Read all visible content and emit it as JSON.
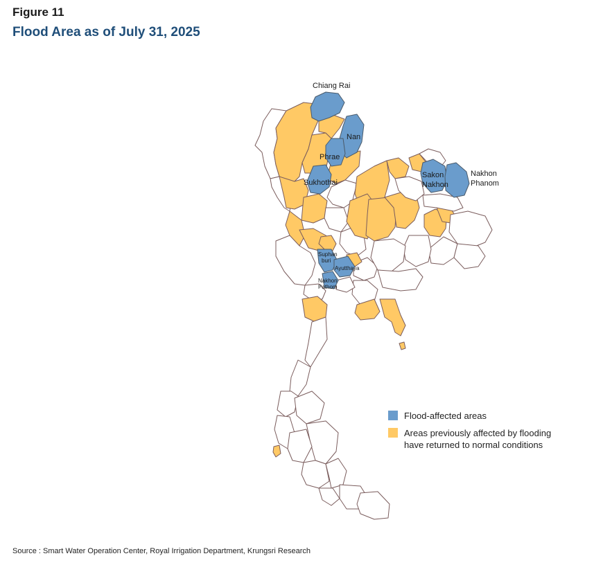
{
  "figure": {
    "label": "Figure 11",
    "title": "Flood Area as of July 31, 2025"
  },
  "colors": {
    "flood": "#6a9ccc",
    "previously_flooded": "#ffc965",
    "unaffected": "#ffffff",
    "border": "#7a5c5c"
  },
  "map_labels": {
    "chiang_rai": "Chiang Rai",
    "nan": "Nan",
    "phrae": "Phrae",
    "sukhothai": "Sukhothai",
    "sakon_nakhon_1": "Sakon",
    "sakon_nakhon_2": "Nakhon",
    "nakhon_phanom_1": "Nakhon",
    "nakhon_phanom_2": "Phanom",
    "suphanburi_1": "Suphan",
    "suphanburi_2": "buri",
    "ayutthaya": "Ayutthaya",
    "nakhon_pathom_1": "Nakhon",
    "nakhon_pathom_2": "Pathom"
  },
  "legend": {
    "flood": "Flood-affected areas",
    "previously": "Areas previously affected by flooding\nhave returned to normal conditions"
  },
  "source": "Source :  Smart Water Operation Center, Royal Irrigation Department, Krungsri Research"
}
